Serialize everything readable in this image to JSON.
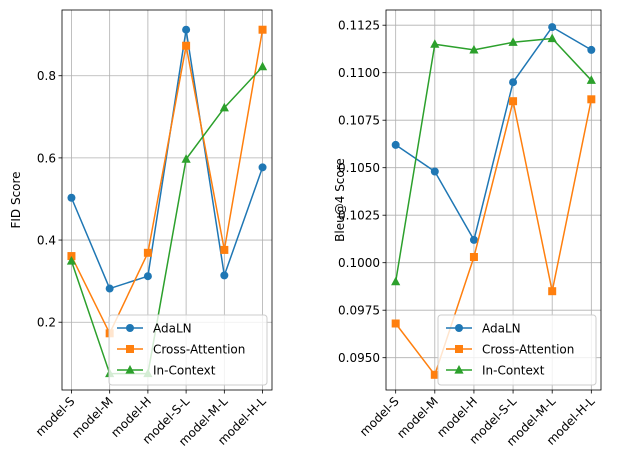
{
  "chart_data": [
    {
      "type": "line",
      "title": "",
      "xlabel": "",
      "ylabel": "FID Score",
      "categories": [
        "model-S",
        "model-M",
        "model-H",
        "model-S-L",
        "model-M-L",
        "model-H-L"
      ],
      "ylim": [
        0.035,
        0.96
      ],
      "yticks": [
        0.2,
        0.4,
        0.6,
        0.8
      ],
      "ytick_labels": [
        "0.2",
        "0.4",
        "0.6",
        "0.8"
      ],
      "grid": true,
      "legend_position": "bottom-right",
      "series": [
        {
          "name": "AdaLN",
          "color": "#1f77b4",
          "marker": "circle",
          "values": [
            0.503,
            0.282,
            0.312,
            0.912,
            0.314,
            0.577
          ]
        },
        {
          "name": "Cross-Attention",
          "color": "#ff7f0e",
          "marker": "square",
          "values": [
            0.361,
            0.173,
            0.369,
            0.873,
            0.376,
            0.912
          ]
        },
        {
          "name": "In-Context",
          "color": "#2ca02c",
          "marker": "triangle",
          "values": [
            0.349,
            0.075,
            0.075,
            0.597,
            0.722,
            0.822
          ]
        }
      ]
    },
    {
      "type": "line",
      "title": "",
      "xlabel": "",
      "ylabel": "Bleu@4 Score",
      "categories": [
        "model-S",
        "model-M",
        "model-H",
        "model-S-L",
        "model-M-L",
        "model-H-L"
      ],
      "ylim": [
        0.0933,
        0.1133
      ],
      "yticks": [
        0.095,
        0.0975,
        0.1,
        0.1025,
        0.105,
        0.1075,
        0.11,
        0.1125
      ],
      "ytick_labels": [
        "0.0950",
        "0.0975",
        "0.1000",
        "0.1025",
        "0.1050",
        "0.1075",
        "0.1100",
        "0.1125"
      ],
      "grid": true,
      "legend_position": "bottom-right",
      "series": [
        {
          "name": "AdaLN",
          "color": "#1f77b4",
          "marker": "circle",
          "values": [
            0.1062,
            0.1048,
            0.1012,
            0.1095,
            0.1124,
            0.1112
          ]
        },
        {
          "name": "Cross-Attention",
          "color": "#ff7f0e",
          "marker": "square",
          "values": [
            0.0968,
            0.0941,
            0.1003,
            0.1085,
            0.0985,
            0.1086
          ]
        },
        {
          "name": "In-Context",
          "color": "#2ca02c",
          "marker": "triangle",
          "values": [
            0.099,
            0.1115,
            0.1112,
            0.1116,
            0.1118,
            0.1096
          ]
        }
      ]
    }
  ]
}
